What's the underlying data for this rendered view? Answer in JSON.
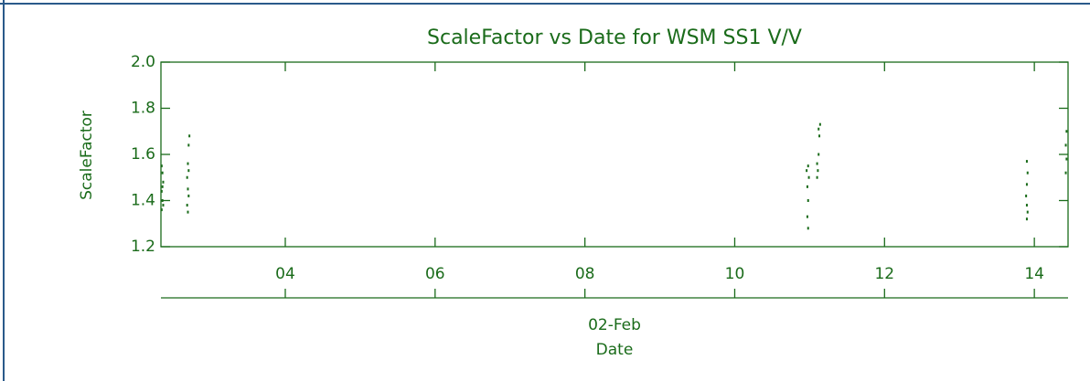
{
  "chart_data": {
    "type": "scatter",
    "title": "ScaleFactor vs Date for WSM SS1 V/V",
    "x_label": "Date",
    "x_sublabel": "02-Feb",
    "y_label": "ScaleFactor",
    "x": [
      2.35,
      2.36,
      2.35,
      2.37,
      2.36,
      2.35,
      2.37,
      2.36,
      2.7,
      2.69,
      2.71,
      2.7,
      2.69,
      2.71,
      2.7,
      2.71,
      2.72,
      10.98,
      10.97,
      10.98,
      10.97,
      10.99,
      10.96,
      10.98,
      11.1,
      11.11,
      11.1,
      11.12,
      11.13,
      11.14,
      11.12,
      13.9,
      13.91,
      13.9,
      13.89,
      13.9,
      13.91,
      13.9,
      14.42,
      14.43,
      14.42,
      14.43
    ],
    "values": [
      1.36,
      1.4,
      1.44,
      1.48,
      1.52,
      1.55,
      1.38,
      1.46,
      1.35,
      1.38,
      1.42,
      1.45,
      1.5,
      1.53,
      1.56,
      1.64,
      1.68,
      1.28,
      1.33,
      1.4,
      1.46,
      1.5,
      1.53,
      1.55,
      1.5,
      1.53,
      1.56,
      1.6,
      1.68,
      1.73,
      1.71,
      1.32,
      1.35,
      1.38,
      1.42,
      1.47,
      1.52,
      1.57,
      1.52,
      1.58,
      1.64,
      1.7
    ],
    "color": "#1a6b1a",
    "xlim": [
      2.34,
      14.45
    ],
    "xticks": [
      {
        "value": 4,
        "label": "04"
      },
      {
        "value": 6,
        "label": "06"
      },
      {
        "value": 8,
        "label": "08"
      },
      {
        "value": 10,
        "label": "10"
      },
      {
        "value": 12,
        "label": "12"
      },
      {
        "value": 14,
        "label": "14"
      }
    ],
    "ylim": [
      1.2,
      2.0
    ],
    "yticks": [
      1.2,
      1.4,
      1.6,
      1.8,
      {
        "value": 2.0,
        "label": "2.0"
      }
    ]
  }
}
